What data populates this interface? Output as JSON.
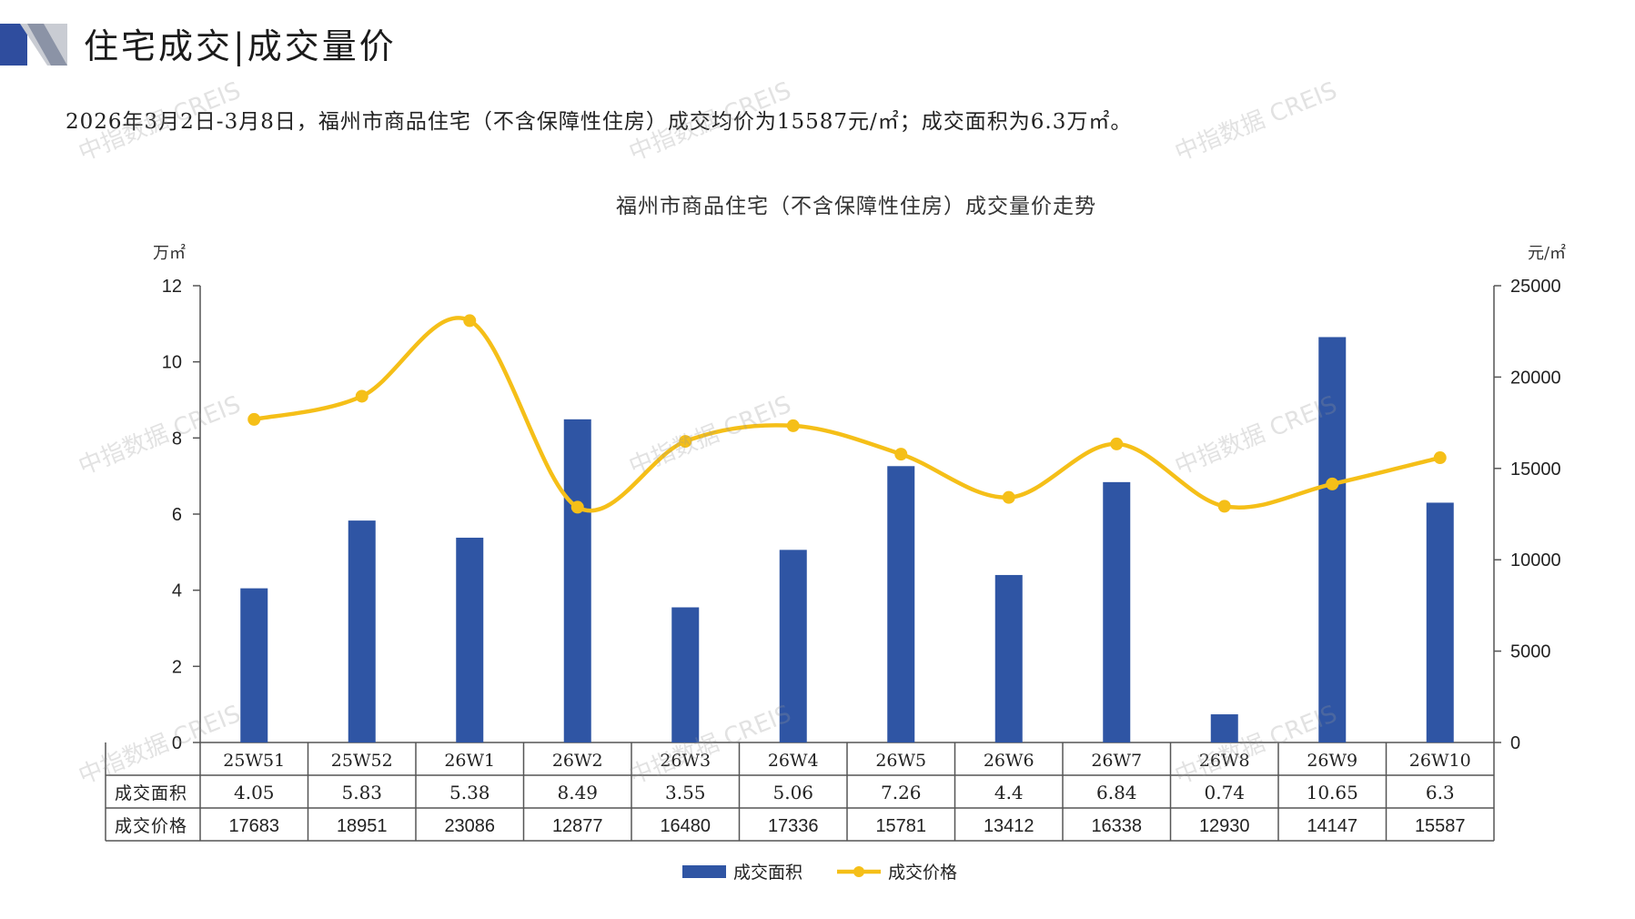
{
  "header": {
    "title": "住宅成交|成交量价",
    "summary": "2026年3月2日-3月8日，福州市商品住宅（不含保障性住房）成交均价为15587元/㎡；成交面积为6.3万㎡。"
  },
  "watermark": "中指数据 CREIS",
  "colors": {
    "bar": "#2f55a4",
    "line": "#f5bf18",
    "axis": "#555555",
    "header_accent": "#2f4d9e"
  },
  "chart_data": {
    "type": "bar",
    "title": "福州市商品住宅（不含保障性住房）成交量价走势",
    "y_left_unit": "万㎡",
    "y_right_unit": "元/㎡",
    "ylim_left": [
      0,
      12
    ],
    "ylim_right": [
      0,
      25000
    ],
    "yticks_left": [
      0,
      2,
      4,
      6,
      8,
      10,
      12
    ],
    "yticks_right": [
      0,
      5000,
      10000,
      15000,
      20000,
      25000
    ],
    "categories": [
      "25W51",
      "25W52",
      "26W1",
      "26W2",
      "26W3",
      "26W4",
      "26W5",
      "26W6",
      "26W7",
      "26W8",
      "26W9",
      "26W10"
    ],
    "series": [
      {
        "name": "成交面积",
        "type": "bar",
        "axis": "left",
        "values": [
          4.05,
          5.83,
          5.38,
          8.49,
          3.55,
          5.06,
          7.26,
          4.4,
          6.84,
          0.74,
          10.65,
          6.3
        ],
        "labels": [
          "4.05",
          "5.83",
          "5.38",
          "8.49",
          "3.55",
          "5.06",
          "7.26",
          "4.4",
          "6.84",
          "0.74",
          "10.65",
          "6.3"
        ]
      },
      {
        "name": "成交价格",
        "type": "line",
        "axis": "right",
        "values": [
          17683,
          18951,
          23086,
          12877,
          16480,
          17336,
          15781,
          13412,
          16338,
          12930,
          14147,
          15587
        ],
        "labels": [
          "17683",
          "18951",
          "23086",
          "12877",
          "16480",
          "17336",
          "15781",
          "13412",
          "16338",
          "12930",
          "14147",
          "15587"
        ]
      }
    ],
    "legend_position": "bottom",
    "grid": false,
    "data_table": true
  }
}
